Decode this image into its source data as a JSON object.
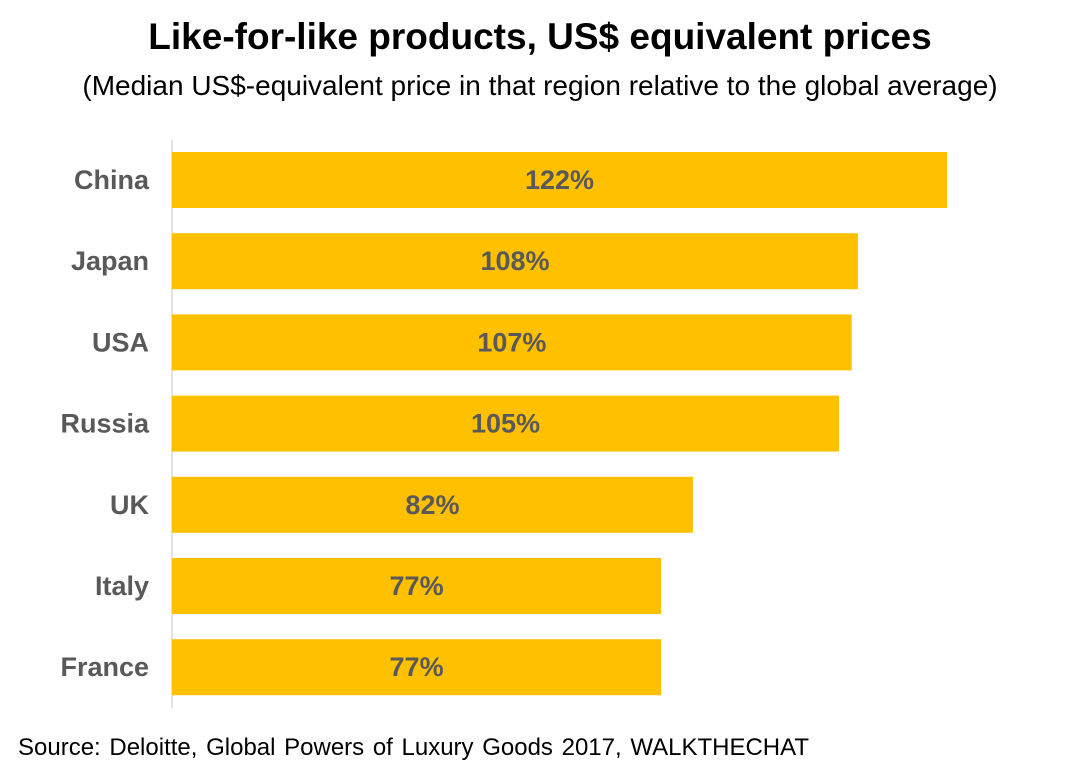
{
  "chart_data": {
    "type": "bar",
    "orientation": "horizontal",
    "title": "Like-for-like products, US$ equivalent prices",
    "subtitle": "(Median US$-equivalent price in that region relative to the global average)",
    "categories": [
      "China",
      "Japan",
      "USA",
      "Russia",
      "UK",
      "Italy",
      "France"
    ],
    "values": [
      122,
      108,
      107,
      105,
      82,
      77,
      77
    ],
    "data_labels": [
      "122%",
      "108%",
      "107%",
      "105%",
      "82%",
      "77%",
      "77%"
    ],
    "xlabel": "",
    "ylabel": "",
    "xlim": [
      0,
      122
    ],
    "grid": false,
    "legend": "none",
    "colors": {
      "bar": "#FFC000",
      "label_text": "#595959",
      "axis_line": "#D9D9D9"
    }
  },
  "source": "Source: Deloitte, Global Powers of Luxury Goods 2017, WALKTHECHAT"
}
